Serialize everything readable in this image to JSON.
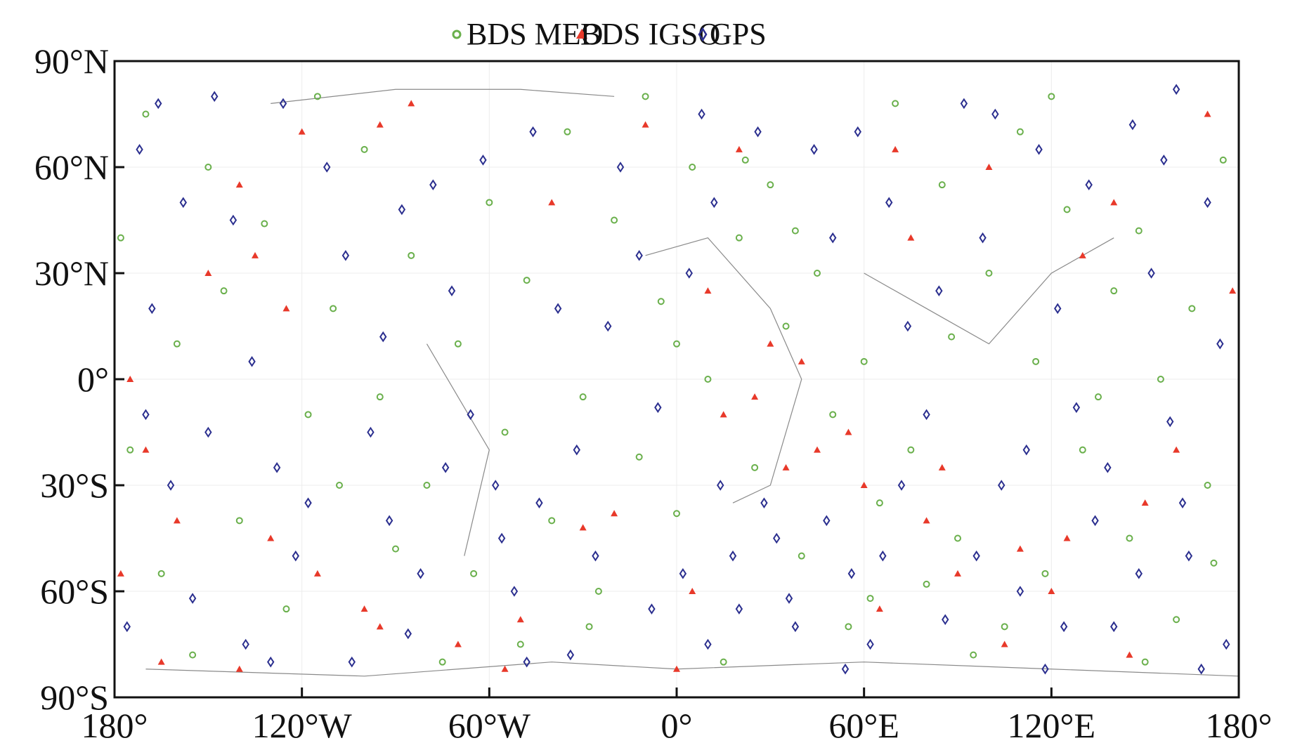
{
  "chart_data": {
    "type": "scatter",
    "title": "",
    "xlabel": "",
    "ylabel": "",
    "xlim": [
      -180,
      180
    ],
    "ylim": [
      -90,
      90
    ],
    "grid": true,
    "legend_position": "top-center",
    "x_ticks": [
      {
        "value": -180,
        "label": "180°"
      },
      {
        "value": -120,
        "label": "120°W"
      },
      {
        "value": -60,
        "label": "60°W"
      },
      {
        "value": 0,
        "label": "0°"
      },
      {
        "value": 60,
        "label": "60°E"
      },
      {
        "value": 120,
        "label": "120°E"
      },
      {
        "value": 180,
        "label": "180°"
      }
    ],
    "y_ticks": [
      {
        "value": 90,
        "label": "90°N"
      },
      {
        "value": 60,
        "label": "60°N"
      },
      {
        "value": 30,
        "label": "30°N"
      },
      {
        "value": 0,
        "label": "0°"
      },
      {
        "value": -30,
        "label": "30°S"
      },
      {
        "value": -60,
        "label": "60°S"
      },
      {
        "value": -90,
        "label": "90°S"
      }
    ],
    "series": [
      {
        "name": "BDS MEO",
        "marker": "circle",
        "color": "#6ab04c",
        "points": [
          [
            -170,
            75
          ],
          [
            -150,
            60
          ],
          [
            -132,
            44
          ],
          [
            -110,
            20
          ],
          [
            -95,
            -5
          ],
          [
            -80,
            -30
          ],
          [
            -65,
            -55
          ],
          [
            -50,
            -75
          ],
          [
            -35,
            70
          ],
          [
            -20,
            45
          ],
          [
            -5,
            22
          ],
          [
            10,
            0
          ],
          [
            25,
            -25
          ],
          [
            40,
            -50
          ],
          [
            55,
            -70
          ],
          [
            70,
            78
          ],
          [
            85,
            55
          ],
          [
            100,
            30
          ],
          [
            115,
            5
          ],
          [
            130,
            -20
          ],
          [
            145,
            -45
          ],
          [
            160,
            -68
          ],
          [
            175,
            62
          ],
          [
            -175,
            -20
          ],
          [
            -160,
            10
          ],
          [
            -140,
            -40
          ],
          [
            -125,
            -65
          ],
          [
            -100,
            65
          ],
          [
            -85,
            35
          ],
          [
            -70,
            10
          ],
          [
            -55,
            -15
          ],
          [
            -40,
            -40
          ],
          [
            -25,
            -60
          ],
          [
            -10,
            80
          ],
          [
            5,
            60
          ],
          [
            20,
            40
          ],
          [
            35,
            15
          ],
          [
            50,
            -10
          ],
          [
            65,
            -35
          ],
          [
            80,
            -58
          ],
          [
            95,
            -78
          ],
          [
            110,
            70
          ],
          [
            125,
            48
          ],
          [
            140,
            25
          ],
          [
            155,
            0
          ],
          [
            170,
            -30
          ],
          [
            -178,
            40
          ],
          [
            -165,
            -55
          ],
          [
            -145,
            25
          ],
          [
            -118,
            -10
          ],
          [
            -90,
            -48
          ],
          [
            -60,
            50
          ],
          [
            -30,
            -5
          ],
          [
            0,
            -38
          ],
          [
            30,
            55
          ],
          [
            45,
            30
          ],
          [
            60,
            5
          ],
          [
            75,
            -20
          ],
          [
            90,
            -45
          ],
          [
            105,
            -70
          ],
          [
            120,
            80
          ],
          [
            135,
            -5
          ],
          [
            150,
            -80
          ],
          [
            165,
            20
          ],
          [
            -115,
            80
          ],
          [
            -75,
            -80
          ],
          [
            15,
            -80
          ],
          [
            0,
            10
          ],
          [
            22,
            62
          ],
          [
            38,
            42
          ],
          [
            -48,
            28
          ],
          [
            -12,
            -22
          ],
          [
            88,
            12
          ],
          [
            148,
            42
          ],
          [
            -155,
            -78
          ],
          [
            -108,
            -30
          ],
          [
            62,
            -62
          ],
          [
            118,
            -55
          ],
          [
            -28,
            -70
          ],
          [
            172,
            -52
          ]
        ]
      },
      {
        "name": "BDS IGSO",
        "marker": "triangle",
        "color": "#e8392a",
        "points": [
          [
            -175,
            0
          ],
          [
            -170,
            -20
          ],
          [
            -160,
            -40
          ],
          [
            -150,
            30
          ],
          [
            -140,
            55
          ],
          [
            -130,
            -45
          ],
          [
            -120,
            70
          ],
          [
            -115,
            -55
          ],
          [
            -100,
            -65
          ],
          [
            -85,
            78
          ],
          [
            -70,
            -75
          ],
          [
            -55,
            -82
          ],
          [
            -40,
            50
          ],
          [
            -30,
            -42
          ],
          [
            -20,
            -38
          ],
          [
            -10,
            72
          ],
          [
            0,
            -82
          ],
          [
            10,
            25
          ],
          [
            15,
            -10
          ],
          [
            25,
            -5
          ],
          [
            30,
            10
          ],
          [
            35,
            -25
          ],
          [
            40,
            5
          ],
          [
            45,
            -20
          ],
          [
            55,
            -15
          ],
          [
            60,
            -30
          ],
          [
            70,
            65
          ],
          [
            80,
            -40
          ],
          [
            90,
            -55
          ],
          [
            100,
            60
          ],
          [
            110,
            -48
          ],
          [
            120,
            -60
          ],
          [
            130,
            35
          ],
          [
            140,
            50
          ],
          [
            150,
            -35
          ],
          [
            160,
            -20
          ],
          [
            170,
            75
          ],
          [
            178,
            25
          ],
          [
            -178,
            -55
          ],
          [
            -135,
            35
          ],
          [
            -125,
            20
          ],
          [
            -95,
            -70
          ],
          [
            -50,
            -68
          ],
          [
            5,
            -60
          ],
          [
            65,
            -65
          ],
          [
            105,
            -75
          ],
          [
            145,
            -78
          ],
          [
            -165,
            -80
          ],
          [
            -140,
            -82
          ],
          [
            20,
            65
          ],
          [
            -95,
            72
          ],
          [
            75,
            40
          ],
          [
            85,
            -25
          ],
          [
            125,
            -45
          ]
        ]
      },
      {
        "name": "GPS",
        "marker": "diamond",
        "color": "#2b2f8f",
        "points": [
          [
            -172,
            65
          ],
          [
            -168,
            20
          ],
          [
            -162,
            -30
          ],
          [
            -155,
            -62
          ],
          [
            -148,
            80
          ],
          [
            -142,
            45
          ],
          [
            -136,
            5
          ],
          [
            -128,
            -25
          ],
          [
            -122,
            -50
          ],
          [
            -112,
            60
          ],
          [
            -106,
            35
          ],
          [
            -98,
            -15
          ],
          [
            -92,
            -40
          ],
          [
            -86,
            -72
          ],
          [
            -78,
            55
          ],
          [
            -72,
            25
          ],
          [
            -66,
            -10
          ],
          [
            -58,
            -30
          ],
          [
            -52,
            -60
          ],
          [
            -46,
            70
          ],
          [
            -38,
            20
          ],
          [
            -32,
            -20
          ],
          [
            -26,
            -50
          ],
          [
            -18,
            60
          ],
          [
            -12,
            35
          ],
          [
            -6,
            -8
          ],
          [
            2,
            -55
          ],
          [
            8,
            75
          ],
          [
            14,
            -30
          ],
          [
            20,
            -65
          ],
          [
            26,
            70
          ],
          [
            32,
            -45
          ],
          [
            38,
            -70
          ],
          [
            44,
            65
          ],
          [
            50,
            40
          ],
          [
            56,
            -55
          ],
          [
            62,
            -75
          ],
          [
            68,
            50
          ],
          [
            74,
            15
          ],
          [
            80,
            -10
          ],
          [
            86,
            -68
          ],
          [
            92,
            78
          ],
          [
            98,
            40
          ],
          [
            104,
            -30
          ],
          [
            110,
            -60
          ],
          [
            116,
            65
          ],
          [
            122,
            20
          ],
          [
            128,
            -8
          ],
          [
            134,
            -40
          ],
          [
            140,
            -70
          ],
          [
            146,
            72
          ],
          [
            152,
            30
          ],
          [
            158,
            -12
          ],
          [
            164,
            -50
          ],
          [
            170,
            50
          ],
          [
            176,
            -75
          ],
          [
            -176,
            -70
          ],
          [
            -170,
            -10
          ],
          [
            -158,
            50
          ],
          [
            -150,
            -15
          ],
          [
            -138,
            -75
          ],
          [
            -126,
            78
          ],
          [
            -118,
            -35
          ],
          [
            -104,
            -80
          ],
          [
            -94,
            12
          ],
          [
            -82,
            -55
          ],
          [
            -74,
            -25
          ],
          [
            -62,
            62
          ],
          [
            -56,
            -45
          ],
          [
            -44,
            -35
          ],
          [
            -34,
            -78
          ],
          [
            -22,
            15
          ],
          [
            -8,
            -65
          ],
          [
            4,
            30
          ],
          [
            12,
            50
          ],
          [
            18,
            -50
          ],
          [
            28,
            -35
          ],
          [
            36,
            -62
          ],
          [
            48,
            -40
          ],
          [
            58,
            70
          ],
          [
            66,
            -50
          ],
          [
            72,
            -30
          ],
          [
            84,
            25
          ],
          [
            96,
            -50
          ],
          [
            102,
            75
          ],
          [
            112,
            -20
          ],
          [
            124,
            -70
          ],
          [
            132,
            55
          ],
          [
            138,
            -25
          ],
          [
            148,
            -55
          ],
          [
            156,
            62
          ],
          [
            162,
            -35
          ],
          [
            168,
            -82
          ],
          [
            174,
            10
          ],
          [
            -166,
            78
          ],
          [
            -130,
            -80
          ],
          [
            -88,
            48
          ],
          [
            -48,
            -80
          ],
          [
            10,
            -75
          ],
          [
            54,
            -82
          ],
          [
            118,
            -82
          ],
          [
            160,
            82
          ]
        ]
      }
    ]
  },
  "legend": {
    "items": [
      {
        "label": "BDS MEO"
      },
      {
        "label": "BDS IGSO"
      },
      {
        "label": "GPS"
      }
    ]
  }
}
